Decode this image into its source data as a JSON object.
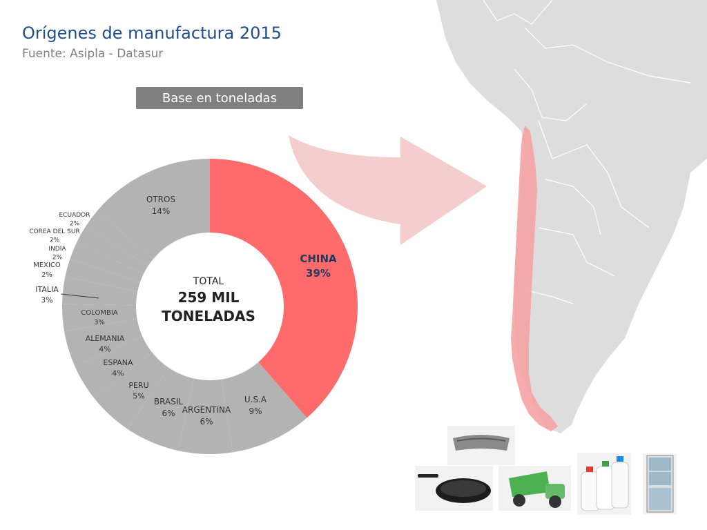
{
  "header": {
    "title": "Orígenes de manufactura 2015",
    "subtitle": "Fuente: Asipla - Datasur"
  },
  "base_label": "Base en toneladas",
  "center": {
    "total_label": "TOTAL",
    "value": "259 MIL",
    "unit": "TONELADAS"
  },
  "colors": {
    "china": "#ff6b6b",
    "others": "#b3b3b3",
    "chile": "#f5a3a3",
    "map": "#dddddd",
    "arrow": "#f2c4c4"
  },
  "chart_data": {
    "type": "donut",
    "title": "Orígenes de manufactura 2015",
    "subtitle": "Fuente: Asipla - Datasur",
    "total": "259 MIL TONELADAS",
    "unit": "%",
    "slices": [
      {
        "label": "CHINA",
        "value": 39
      },
      {
        "label": "U.S.A",
        "value": 9
      },
      {
        "label": "ARGENTINA",
        "value": 6
      },
      {
        "label": "BRASIL",
        "value": 6
      },
      {
        "label": "PERU",
        "value": 5
      },
      {
        "label": "ESPANA",
        "value": 4
      },
      {
        "label": "ALEMANIA",
        "value": 4
      },
      {
        "label": "COLOMBIA",
        "value": 3
      },
      {
        "label": "ITALIA",
        "value": 3
      },
      {
        "label": "MEXICO",
        "value": 2
      },
      {
        "label": "INDIA",
        "value": 2
      },
      {
        "label": "COREA DEL SUR",
        "value": 2
      },
      {
        "label": "ECUADOR",
        "value": 2
      },
      {
        "label": "OTROS",
        "value": 14
      }
    ]
  },
  "products": [
    {
      "icon": "bumper-icon"
    },
    {
      "icon": "frying-pan-icon"
    },
    {
      "icon": "toy-truck-icon"
    },
    {
      "icon": "milk-bottles-icon"
    },
    {
      "icon": "refrigerator-icon"
    }
  ]
}
